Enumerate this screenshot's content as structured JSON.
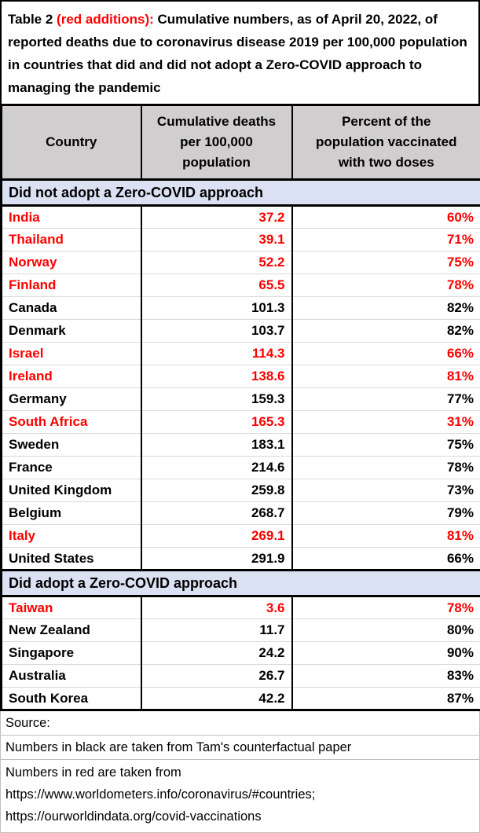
{
  "colors": {
    "red": "#FF0000",
    "header_fill": "#D0CECE",
    "section_fill": "#D9E1F2",
    "border_dark": "#000000",
    "row_line": "#D9D9D9",
    "footer_line": "#BFBFBF"
  },
  "title": {
    "black_prefix": "Table 2 ",
    "red_part": "(red additions):",
    "black_rest": " Cumulative numbers, as of April 20, 2022, of reported deaths due to coronavirus disease 2019 per 100,000 population in countries that did and did not adopt a Zero-COVID approach to managing the pandemic"
  },
  "table": {
    "columns": [
      "Country",
      "Cumulative deaths\nper 100,000\npopulation",
      "Percent of the\npopulation vaccinated\nwith two doses"
    ],
    "sections": [
      {
        "label": "Did not adopt a Zero-COVID approach",
        "rows": [
          {
            "country": "India",
            "deaths": "37.2",
            "vaccinated": "60%",
            "red": true
          },
          {
            "country": "Thailand",
            "deaths": "39.1",
            "vaccinated": "71%",
            "red": true
          },
          {
            "country": "Norway",
            "deaths": "52.2",
            "vaccinated": "75%",
            "red": true
          },
          {
            "country": "Finland",
            "deaths": "65.5",
            "vaccinated": "78%",
            "red": true
          },
          {
            "country": "Canada",
            "deaths": "101.3",
            "vaccinated": "82%",
            "red": false
          },
          {
            "country": "Denmark",
            "deaths": "103.7",
            "vaccinated": "82%",
            "red": false
          },
          {
            "country": "Israel",
            "deaths": "114.3",
            "vaccinated": "66%",
            "red": true
          },
          {
            "country": "Ireland",
            "deaths": "138.6",
            "vaccinated": "81%",
            "red": true
          },
          {
            "country": "Germany",
            "deaths": "159.3",
            "vaccinated": "77%",
            "red": false
          },
          {
            "country": "South Africa",
            "deaths": "165.3",
            "vaccinated": "31%",
            "red": true
          },
          {
            "country": "Sweden",
            "deaths": "183.1",
            "vaccinated": "75%",
            "red": false
          },
          {
            "country": "France",
            "deaths": "214.6",
            "vaccinated": "78%",
            "red": false
          },
          {
            "country": "United Kingdom",
            "deaths": "259.8",
            "vaccinated": "73%",
            "red": false
          },
          {
            "country": "Belgium",
            "deaths": "268.7",
            "vaccinated": "79%",
            "red": false
          },
          {
            "country": "Italy",
            "deaths": "269.1",
            "vaccinated": "81%",
            "red": true
          },
          {
            "country": "United States",
            "deaths": "291.9",
            "vaccinated": "66%",
            "red": false
          }
        ]
      },
      {
        "label": "Did adopt a Zero-COVID approach",
        "rows": [
          {
            "country": "Taiwan",
            "deaths": "3.6",
            "vaccinated": "78%",
            "red": true
          },
          {
            "country": "New Zealand",
            "deaths": "11.7",
            "vaccinated": "80%",
            "red": false
          },
          {
            "country": "Singapore",
            "deaths": "24.2",
            "vaccinated": "90%",
            "red": false
          },
          {
            "country": "Australia",
            "deaths": "26.7",
            "vaccinated": "83%",
            "red": false
          },
          {
            "country": "South Korea",
            "deaths": "42.2",
            "vaccinated": "87%",
            "red": false
          }
        ]
      }
    ]
  },
  "footer": {
    "source_label": "Source:",
    "note_black": "Numbers in black are taken from Tam's counterfactual paper",
    "note_red": "Numbers in red are taken from\nhttps://www.worldometers.info/coronavirus/#countries;\nhttps://ourworldindata.org/covid-vaccinations"
  }
}
